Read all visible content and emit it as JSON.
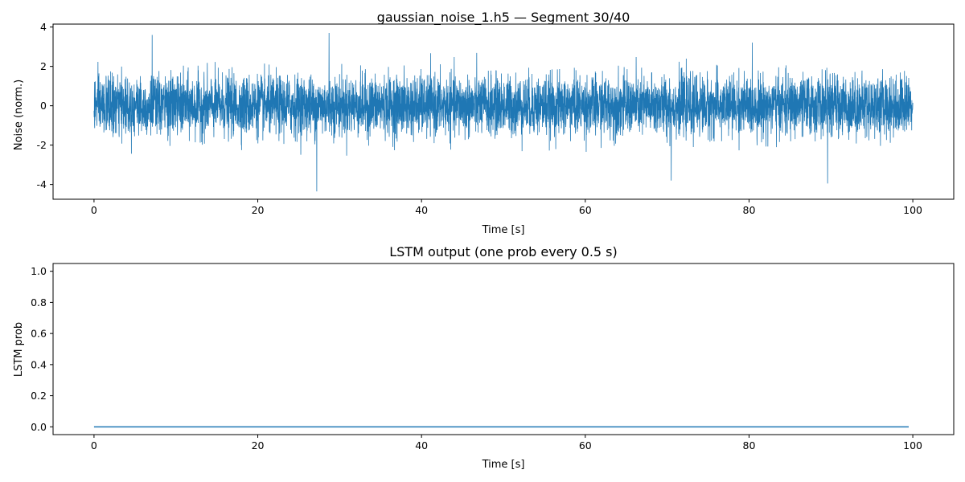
{
  "chart_data": [
    {
      "type": "line",
      "title": "gaussian_noise_1.h5 — Segment 30/40",
      "xlabel": "Time [s]",
      "ylabel": "Noise (norm.)",
      "xlim": [
        -5,
        105
      ],
      "ylim": [
        -4.75,
        4.15
      ],
      "xticks": [
        0,
        20,
        40,
        60,
        80,
        100
      ],
      "yticks": [
        -4,
        -2,
        0,
        2,
        4
      ],
      "grid": false,
      "series": [
        {
          "color": "#1f77b4",
          "x_range": [
            0,
            100
          ],
          "sample_description": "dense zero-mean gaussian noise trace, std ~0.75",
          "std": 0.75,
          "min": -4.35,
          "max": 3.7,
          "extremes": [
            {
              "x": 27.2,
              "y": -4.35
            },
            {
              "x": 28.7,
              "y": 3.7
            },
            {
              "x": 7.1,
              "y": 3.6
            },
            {
              "x": 89.6,
              "y": -3.95
            },
            {
              "x": 70.5,
              "y": -3.8
            }
          ]
        }
      ]
    },
    {
      "type": "line",
      "title": "LSTM output (one prob every 0.5 s)",
      "xlabel": "Time [s]",
      "ylabel": "LSTM prob",
      "xlim": [
        -5,
        105
      ],
      "ylim": [
        -0.05,
        1.05
      ],
      "xticks": [
        0,
        20,
        40,
        60,
        80,
        100
      ],
      "yticks": [
        0.0,
        0.2,
        0.4,
        0.6,
        0.8,
        1.0
      ],
      "grid": false,
      "series": [
        {
          "color": "#1f77b4",
          "x": [
            0,
            99.5
          ],
          "y": [
            0.0,
            0.0
          ]
        }
      ]
    }
  ]
}
